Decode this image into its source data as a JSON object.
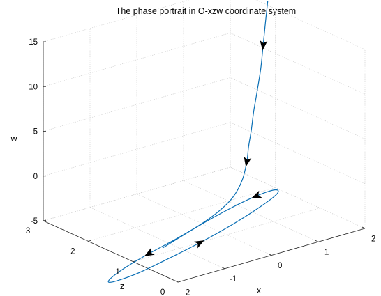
{
  "chart_data": {
    "type": "line",
    "title": "The phase portrait in O-xzw coordinate system",
    "xlabel": "x",
    "ylabel": "z",
    "zlabel": "w",
    "x_ticks": [
      "-2",
      "-1",
      "0",
      "1",
      "2"
    ],
    "z_ticks": [
      "0",
      "1",
      "2",
      "3"
    ],
    "w_ticks": [
      "-5",
      "0",
      "5",
      "10",
      "15"
    ],
    "xlim": [
      -2,
      2
    ],
    "zlim": [
      0,
      3
    ],
    "wlim": [
      -5,
      15
    ],
    "grid": true,
    "series": [
      {
        "color": "#0a6fb5",
        "x": [
          1.65,
          1.6,
          1.55,
          1.5,
          1.42,
          1.35,
          1.3,
          1.24,
          1.2,
          1.1,
          0.9,
          0.6,
          0.2,
          -0.3,
          -0.9,
          -1.4,
          -1.7,
          -1.75,
          -1.55,
          -1.1,
          -0.5,
          0.2,
          0.9,
          1.5,
          1.85,
          1.8,
          1.4,
          0.8,
          0.1,
          -0.6
        ],
        "z": [
          1.8,
          1.8,
          1.8,
          1.8,
          1.8,
          1.8,
          1.8,
          1.8,
          1.8,
          1.8,
          1.8,
          1.8,
          1.8,
          1.8,
          1.8,
          1.8,
          1.8,
          1.8,
          1.8,
          1.8,
          1.8,
          1.8,
          1.8,
          1.8,
          1.8,
          1.8,
          1.8,
          1.8,
          1.8,
          1.8
        ],
        "w": [
          16.8,
          14.5,
          12.0,
          9.5,
          7.0,
          5.0,
          3.0,
          1.2,
          -0.5,
          -2.4,
          -4.0,
          -5.1,
          -6.0,
          -6.8,
          -7.6,
          -8.4,
          -9.1,
          -9.5,
          -9.6,
          -9.4,
          -8.8,
          -8.0,
          -7.0,
          -5.9,
          -5.0,
          -4.5,
          -4.6,
          -5.2,
          -6.2,
          -7.4
        ]
      }
    ],
    "arrows_at_index": [
      2,
      8,
      14,
      21,
      26
    ]
  }
}
